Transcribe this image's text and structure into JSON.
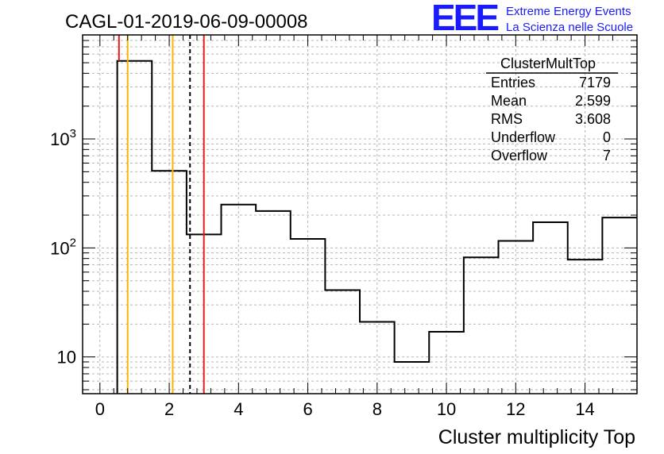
{
  "chart_data": {
    "type": "bar",
    "title": "CAGL-01-2019-06-09-00008",
    "xlabel": "Cluster multiplicity Top",
    "ylabel": "",
    "xlim": [
      -0.5,
      15.5
    ],
    "ylim": [
      4.6,
      9000
    ],
    "y_scale": "log",
    "grid": true,
    "x_ticks": [
      0,
      2,
      4,
      6,
      8,
      10,
      12,
      14
    ],
    "y_ticks": [
      {
        "value": 10,
        "base": "10",
        "exp": ""
      },
      {
        "value": 100,
        "base": "10",
        "exp": "2"
      },
      {
        "value": 1000,
        "base": "10",
        "exp": "3"
      }
    ],
    "bins": [
      {
        "x0": 0.5,
        "x1": 1.5,
        "value": 5200
      },
      {
        "x0": 1.5,
        "x1": 2.5,
        "value": 510
      },
      {
        "x0": 2.5,
        "x1": 3.5,
        "value": 133
      },
      {
        "x0": 3.5,
        "x1": 4.5,
        "value": 250
      },
      {
        "x0": 4.5,
        "x1": 5.5,
        "value": 218
      },
      {
        "x0": 5.5,
        "x1": 6.5,
        "value": 121
      },
      {
        "x0": 6.5,
        "x1": 7.5,
        "value": 41
      },
      {
        "x0": 7.5,
        "x1": 8.5,
        "value": 21
      },
      {
        "x0": 8.5,
        "x1": 9.5,
        "value": 9
      },
      {
        "x0": 9.5,
        "x1": 10.5,
        "value": 17
      },
      {
        "x0": 10.5,
        "x1": 11.5,
        "value": 82
      },
      {
        "x0": 11.5,
        "x1": 12.5,
        "value": 116
      },
      {
        "x0": 12.5,
        "x1": 13.5,
        "value": 172
      },
      {
        "x0": 13.5,
        "x1": 14.5,
        "value": 78
      },
      {
        "x0": 14.5,
        "x1": 15.5,
        "value": 190
      }
    ],
    "vertical_lines": [
      {
        "x": 0.55,
        "color": "#e8191c",
        "style": "solid",
        "partial": true
      },
      {
        "x": 0.8,
        "color": "#f5b800",
        "style": "solid"
      },
      {
        "x": 2.1,
        "color": "#f5b800",
        "style": "solid"
      },
      {
        "x": 2.6,
        "color": "#000000",
        "style": "dashed"
      },
      {
        "x": 3.0,
        "color": "#e8191c",
        "style": "solid"
      }
    ],
    "stats": {
      "title": "ClusterMultTop",
      "rows": [
        {
          "label": "Entries",
          "value": "7179"
        },
        {
          "label": "Mean",
          "value": "2.599"
        },
        {
          "label": "RMS",
          "value": "3.608"
        },
        {
          "label": "Underflow",
          "value": "0"
        },
        {
          "label": "Overflow",
          "value": "7"
        }
      ]
    }
  },
  "logo": {
    "mark": "EEE",
    "line1": "Extreme Energy Events",
    "line2": "La Scienza nelle Scuole",
    "color": "#1a1aff"
  }
}
